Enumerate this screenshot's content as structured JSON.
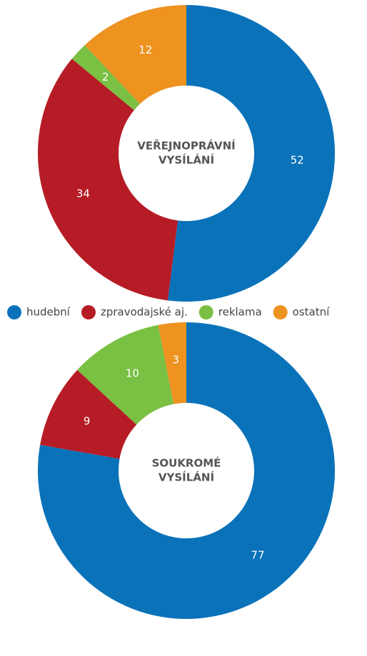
{
  "chart_data": [
    {
      "type": "donut",
      "title": [
        "VEŘEJNOPRÁVNÍ",
        "VYSÍLÁNÍ"
      ],
      "categories": [
        "hudební",
        "zpravodajské aj.",
        "reklama",
        "ostatní"
      ],
      "colors": [
        "#0a72b9",
        "#b61c25",
        "#79c043",
        "#ee9220"
      ],
      "values": [
        52,
        34,
        2,
        12
      ]
    },
    {
      "type": "donut",
      "title": [
        "SOUKROMÉ",
        "VYSÍLÁNÍ"
      ],
      "values": [
        77,
        9,
        10,
        3
      ]
    }
  ]
}
